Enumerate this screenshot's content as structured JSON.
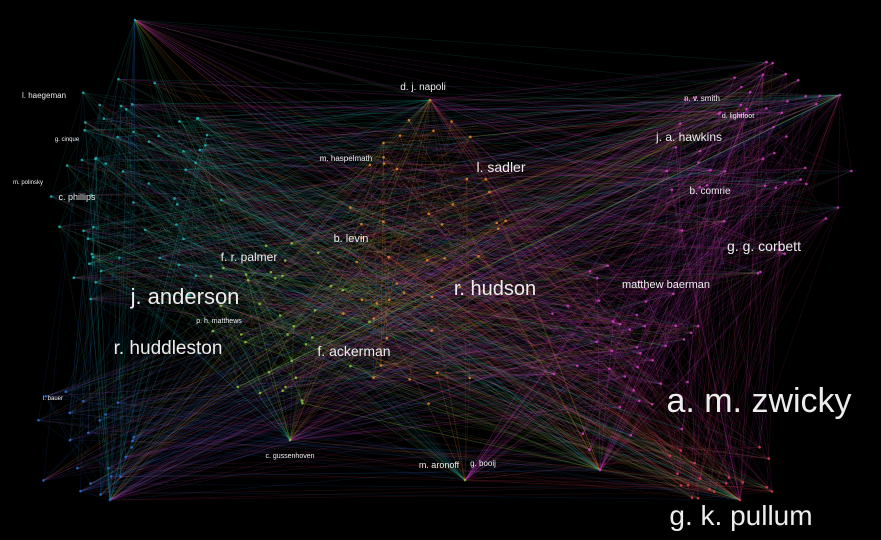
{
  "labels": {
    "zwicky": "a. m. zwicky",
    "pullum": "g. k. pullum",
    "hudson": "r. hudson",
    "anderson": "j. anderson",
    "huddleston": "r. huddleston",
    "corbett": "g. g. corbett",
    "sadler": "l. sadler",
    "ackerman": "f. ackerman",
    "palmer": "f. r. palmer",
    "baerman": "matthew baerman",
    "hawkins": "j. a. hawkins",
    "levin": "b. levin",
    "napoli": "d. j. napoli",
    "comrie": "b. comrie",
    "haspelmath": "m. haspelmath",
    "smith": "n. v. smith",
    "lightfoot": "d. lightfoot",
    "phillips": "c. phillips",
    "haegeman": "l. haegeman",
    "bauer": "l. bauer",
    "gussenhoven": "c. gussenhoven",
    "aronoff": "m. aronoff",
    "booij": "g. booij",
    "matthews": "p. h. matthews",
    "cinque": "g. cinque",
    "polinsky": "m. polinsky"
  },
  "colors": {
    "background": "#000000",
    "teal": "#1fb5b0",
    "blue": "#2a6fd6",
    "green": "#8bc53f",
    "orange": "#e8892e",
    "magenta": "#d13fc4",
    "red": "#e0405a",
    "label": "#ededed"
  }
}
